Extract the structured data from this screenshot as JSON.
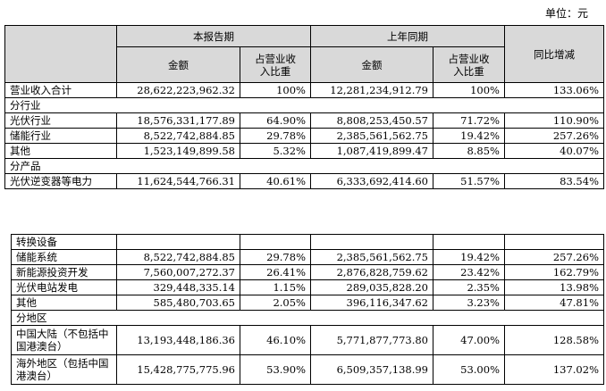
{
  "unit": "单位：元",
  "header": {
    "current": "本报告期",
    "previous": "上年同期",
    "change": "同比增减",
    "amount": "金额",
    "share": "占营业收入比重"
  },
  "table1": {
    "rows": [
      [
        "营业收入合计",
        "28,622,223,962.32",
        "100%",
        "12,281,234,912.79",
        "100%",
        "133.06%"
      ],
      [
        "分行业"
      ],
      [
        "光伏行业",
        "18,576,331,177.89",
        "64.90%",
        "8,808,253,450.57",
        "71.72%",
        "110.90%"
      ],
      [
        "储能行业",
        "8,522,742,884.85",
        "29.78%",
        "2,385,561,562.75",
        "19.42%",
        "257.26%"
      ],
      [
        "其他",
        "1,523,149,899.58",
        "5.32%",
        "1,087,419,899.47",
        "8.85%",
        "40.07%"
      ],
      [
        "分产品"
      ],
      [
        "光伏逆变器等电力",
        "11,624,544,766.31",
        "40.61%",
        "6,333,692,414.60",
        "51.57%",
        "83.54%"
      ]
    ]
  },
  "table2": {
    "rows": [
      [
        "转换设备"
      ],
      [
        "储能系统",
        "8,522,742,884.85",
        "29.78%",
        "2,385,561,562.75",
        "19.42%",
        "257.26%"
      ],
      [
        "新能源投资开发",
        "7,560,007,272.37",
        "26.41%",
        "2,876,828,759.62",
        "23.42%",
        "162.79%"
      ],
      [
        "光伏电站发电",
        "329,448,335.14",
        "1.15%",
        "289,035,828.20",
        "2.35%",
        "13.98%"
      ],
      [
        "其他",
        "585,480,703.65",
        "2.05%",
        "396,116,347.62",
        "3.23%",
        "47.81%"
      ],
      [
        "分地区"
      ],
      [
        "中国大陆（不包括中国港澳台）",
        "13,193,448,186.36",
        "46.10%",
        "5,771,877,773.80",
        "47.00%",
        "128.58%"
      ],
      [
        "海外地区（包括中国港澳台）",
        "15,428,775,775.96",
        "53.90%",
        "6,509,357,138.99",
        "53.00%",
        "137.02%"
      ]
    ]
  }
}
